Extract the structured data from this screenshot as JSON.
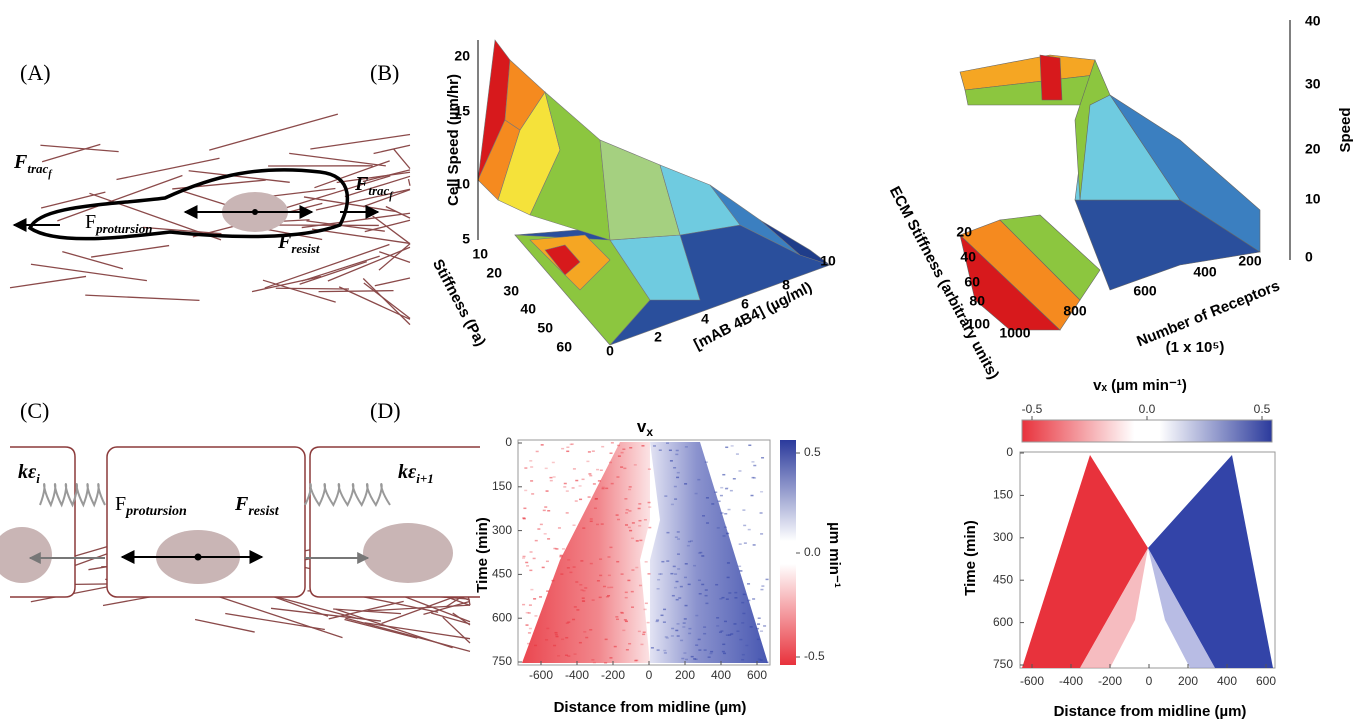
{
  "panel_a": {
    "label": "(A)",
    "traction_left": {
      "main": "F",
      "sub": "trac",
      "subsub": "f"
    },
    "protrusion": {
      "main": "F",
      "sub": "protursion"
    },
    "traction_right": {
      "main": "F",
      "sub": "trac",
      "subsub": "f"
    },
    "resist": {
      "main": "F",
      "sub": "resist"
    }
  },
  "panel_b": {
    "label": "(B)",
    "left_plot": {
      "z_label": "Cell Speed (µm/hr)",
      "z_ticks": [
        5,
        10,
        15,
        20
      ],
      "x_label": "Stiffness (Pa)",
      "x_ticks": [
        10,
        20,
        30,
        40,
        50,
        60
      ],
      "y_label": "[mAB 4B4] (µg/ml)",
      "y_ticks": [
        0,
        2,
        4,
        6,
        8,
        10
      ]
    },
    "right_plot": {
      "z_label": "Speed",
      "z_ticks": [
        0,
        10,
        20,
        30,
        40
      ],
      "x_label": "ECM Stiffness (arbitrary units)",
      "x_ticks": [
        20,
        40,
        60,
        80,
        100
      ],
      "y_label": "Number of Receptors",
      "y_unit": "(1 x 10⁵)",
      "y_ticks": [
        1000,
        800,
        600,
        400,
        200
      ]
    }
  },
  "panel_c": {
    "label": "(C)",
    "spring_left": {
      "main": "kε",
      "sub": "i"
    },
    "protrusion": {
      "main": "F",
      "sub": "protursion"
    },
    "resist": {
      "main": "F",
      "sub": "resist"
    },
    "spring_right": {
      "main": "kε",
      "sub": "i+1"
    }
  },
  "panel_d": {
    "label": "(D)",
    "experiment": {
      "title": {
        "main": "v",
        "sub": "x"
      },
      "y_label": "Time (min)",
      "y_ticks": [
        0,
        150,
        300,
        450,
        600,
        750
      ],
      "x_label": "Distance from midline (µm)",
      "x_ticks": [
        -600,
        -400,
        -200,
        0,
        200,
        400,
        600
      ],
      "colorbar_label": "µm min⁻¹",
      "colorbar_ticks": [
        0.5,
        {
          "value": 0,
          "label": "0.0"
        },
        -0.5
      ]
    },
    "model": {
      "colorbar_title": "vₓ (µm min⁻¹)",
      "colorbar_ticks": [
        -0.5,
        {
          "value": 0,
          "label": "0.0"
        },
        0.5
      ],
      "y_label": "Time (min)",
      "y_ticks": [
        0,
        150,
        300,
        450,
        600,
        750
      ],
      "x_label": "Distance from midline (µm)",
      "x_ticks": [
        -600,
        -400,
        -200,
        0,
        200,
        400,
        600
      ]
    }
  }
}
